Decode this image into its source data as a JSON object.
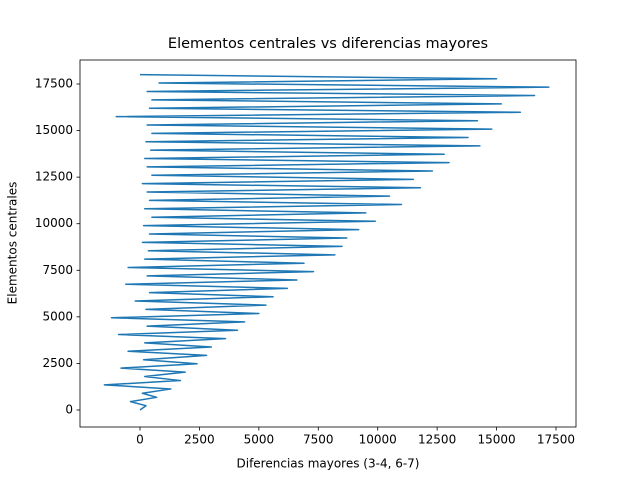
{
  "chart_data": {
    "type": "line",
    "title": "Elementos centrales vs diferencias mayores",
    "x_label": "Diferencias mayores (3-4, 6-7)",
    "y_label": "Elementos centrales",
    "xlim": [
      -2524,
      18342
    ],
    "ylim": [
      -913,
      18788
    ],
    "xticks": [
      0,
      2500,
      5000,
      7500,
      10000,
      12500,
      15000,
      17500
    ],
    "yticks": [
      0,
      2500,
      5000,
      7500,
      10000,
      12500,
      15000,
      17500
    ],
    "series": [
      {
        "color": "#1f77b4",
        "x": [
          0,
          250,
          -400,
          700,
          100,
          1300,
          -1500,
          1700,
          200,
          1900,
          -800,
          2400,
          150,
          2800,
          -500,
          3000,
          200,
          3600,
          -900,
          4100,
          300,
          4400,
          -1200,
          5000,
          250,
          5300,
          -200,
          5600,
          400,
          6200,
          -600,
          6600,
          300,
          7300,
          -500,
          6900,
          200,
          8200,
          350,
          8500,
          100,
          8700,
          400,
          9200,
          150,
          9900,
          500,
          9500,
          200,
          11000,
          400,
          10500,
          300,
          11800,
          100,
          11500,
          500,
          12300,
          300,
          13000,
          200,
          12800,
          450,
          14300,
          250,
          13800,
          500,
          14800,
          300,
          14200,
          -1000,
          16000,
          400,
          15200,
          500,
          16600,
          300,
          17200,
          800,
          15000,
          0
        ],
        "values": [
          0,
          230,
          450,
          680,
          900,
          1130,
          1350,
          1580,
          1800,
          2030,
          2250,
          2480,
          2700,
          2930,
          3150,
          3380,
          3600,
          3830,
          4050,
          4280,
          4500,
          4730,
          4950,
          5180,
          5400,
          5630,
          5850,
          6080,
          6300,
          6530,
          6750,
          6980,
          7200,
          7430,
          7650,
          7880,
          8100,
          8330,
          8550,
          8780,
          9000,
          9230,
          9450,
          9680,
          9900,
          10130,
          10350,
          10580,
          10800,
          11030,
          11250,
          11480,
          11700,
          11930,
          12150,
          12380,
          12600,
          12830,
          13050,
          13280,
          13500,
          13730,
          13950,
          14180,
          14400,
          14630,
          14850,
          15080,
          15300,
          15530,
          15750,
          15980,
          16200,
          16430,
          16650,
          16880,
          17100,
          17330,
          17550,
          17780,
          18000
        ]
      }
    ]
  }
}
